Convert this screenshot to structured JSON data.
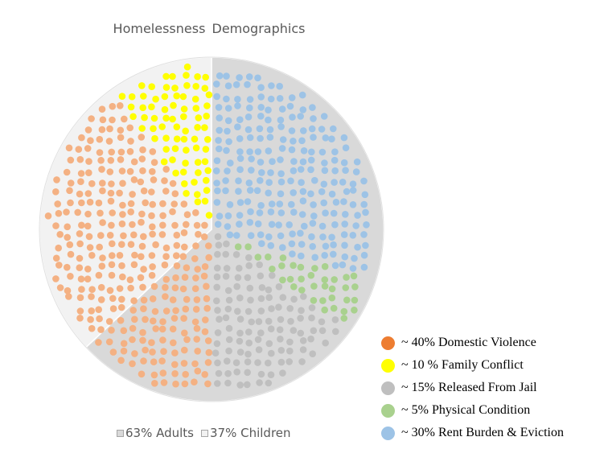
{
  "chart_data": {
    "type": "pie",
    "title": "Homelessness  Demographics",
    "base_pie": {
      "slices": [
        {
          "label": "63% Adults",
          "value": 63,
          "color": "#d9d9d9"
        },
        {
          "label": "37% Children",
          "value": 37,
          "color": "#f2f2f2"
        }
      ],
      "legend_position": "bottom"
    },
    "dot_categories": [
      {
        "label": "~ 40% Domestic Violence",
        "value": 40,
        "legend_color": "#ed7d31",
        "dot_color": "#f4b183"
      },
      {
        "label": "~ 10 % Family Conflict",
        "value": 10,
        "legend_color": "#ffff00",
        "dot_color": "#ffff00"
      },
      {
        "label": "~ 15% Released From Jail",
        "value": 15,
        "legend_color": "#bfbfbf",
        "dot_color": "#bfbfbf"
      },
      {
        "label": "~ 5% Physical Condition",
        "value": 5,
        "legend_color": "#a9d18e",
        "dot_color": "#a9d18e"
      },
      {
        "label": "~ 30% Rent Burden & Eviction",
        "value": 30,
        "legend_color": "#9dc3e6",
        "dot_color": "#9dc3e6"
      }
    ],
    "legend_placement": "right"
  }
}
